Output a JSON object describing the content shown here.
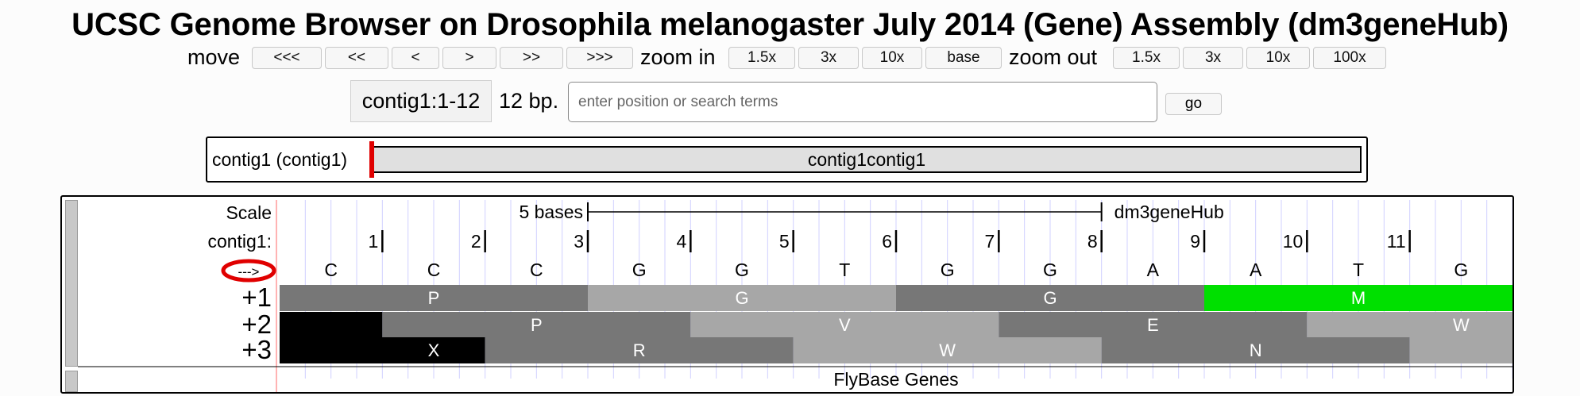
{
  "page_title": "UCSC Genome Browser on Drosophila melanogaster July 2014 (Gene) Assembly (dm3geneHub)",
  "navigation": {
    "move_label": "move",
    "move_buttons": [
      "<<<",
      "<<",
      "<",
      ">",
      ">>",
      ">>>"
    ],
    "zoom_in_label": "zoom in",
    "zoom_in_buttons": [
      "1.5x",
      "3x",
      "10x",
      "base"
    ],
    "zoom_out_label": "zoom out",
    "zoom_out_buttons": [
      "1.5x",
      "3x",
      "10x",
      "100x"
    ]
  },
  "position": {
    "value": "contig1:1-12",
    "size": "12 bp.",
    "search_placeholder": "enter position or search terms",
    "go_label": "go"
  },
  "ideogram": {
    "label": "contig1 (contig1)",
    "band_name": "contig1contig1",
    "highlight_color": "#e00000"
  },
  "tracks": {
    "scale_label": "Scale",
    "scale_text": "5 bases",
    "assembly": "dm3geneHub",
    "chrom_label": "contig1:",
    "strand_label": "--->",
    "ticks": [
      "1",
      "2",
      "3",
      "4",
      "5",
      "6",
      "7",
      "8",
      "9",
      "10",
      "11"
    ],
    "sequence": [
      "C",
      "C",
      "C",
      "G",
      "G",
      "T",
      "G",
      "G",
      "A",
      "A",
      "T",
      "G"
    ],
    "frames": [
      {
        "label": "+1",
        "codons": [
          {
            "aa": "P",
            "start": 0,
            "end": 3,
            "shade": "#777777"
          },
          {
            "aa": "G",
            "start": 3,
            "end": 6,
            "shade": "#a7a7a7"
          },
          {
            "aa": "G",
            "start": 6,
            "end": 9,
            "shade": "#777777"
          },
          {
            "aa": "M",
            "start": 9,
            "end": 12,
            "shade": "#00e000"
          }
        ]
      },
      {
        "label": "+2",
        "codons": [
          {
            "aa": "",
            "start": 0,
            "end": 1,
            "shade": "#000000"
          },
          {
            "aa": "P",
            "start": 1,
            "end": 4,
            "shade": "#777777"
          },
          {
            "aa": "V",
            "start": 4,
            "end": 7,
            "shade": "#a7a7a7"
          },
          {
            "aa": "E",
            "start": 7,
            "end": 10,
            "shade": "#777777"
          },
          {
            "aa": "W",
            "start": 10,
            "end": 12,
            "shade": "#a7a7a7"
          }
        ]
      },
      {
        "label": "+3",
        "codons": [
          {
            "aa": "X",
            "start": 0,
            "end": 2,
            "shade": "#000000"
          },
          {
            "aa": "R",
            "start": 2,
            "end": 5,
            "shade": "#777777"
          },
          {
            "aa": "W",
            "start": 5,
            "end": 8,
            "shade": "#a7a7a7"
          },
          {
            "aa": "N",
            "start": 8,
            "end": 11,
            "shade": "#777777"
          },
          {
            "aa": "",
            "start": 11,
            "end": 12,
            "shade": "#a7a7a7"
          }
        ]
      }
    ],
    "gene_track_name": "FlyBase Genes",
    "guide_line_color": "#d0d0ff",
    "base_line_color": "#ff9a9a",
    "strand_circle_color": "#e00000"
  }
}
